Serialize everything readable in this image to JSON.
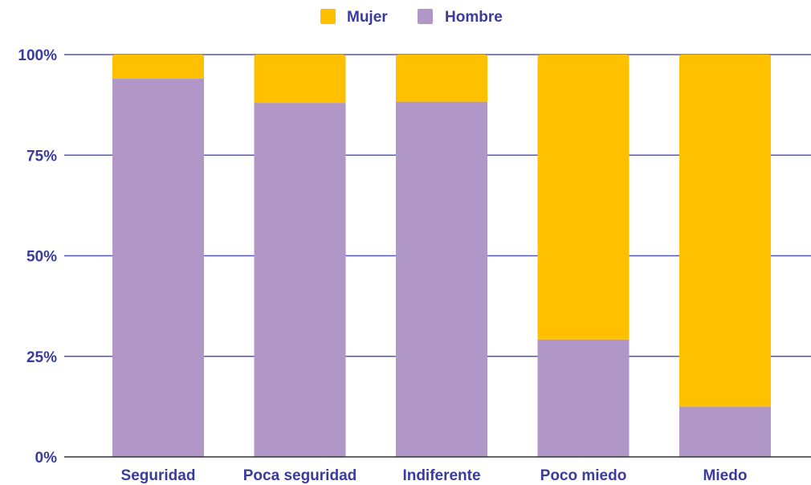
{
  "chart_data": {
    "type": "bar",
    "stacked": true,
    "normalized": true,
    "categories": [
      "Seguridad",
      "Poca seguridad",
      "Indiferente",
      "Poco miedo",
      "Miedo"
    ],
    "series": [
      {
        "name": "Hombre",
        "values": [
          94,
          88,
          88.3,
          29.2,
          12.5
        ]
      },
      {
        "name": "Mujer",
        "values": [
          6,
          12,
          11.7,
          70.8,
          87.5
        ]
      }
    ],
    "yticks": [
      "0%",
      "25%",
      "50%",
      "75%",
      "100%"
    ],
    "ylim": [
      0,
      100
    ],
    "legend_position": "top",
    "grid": true,
    "colors": {
      "Mujer": "#ffc000",
      "Hombre": "#b097c8",
      "text": "#3b3b9e",
      "grid": "#5656c4",
      "axis": "#333333"
    }
  }
}
